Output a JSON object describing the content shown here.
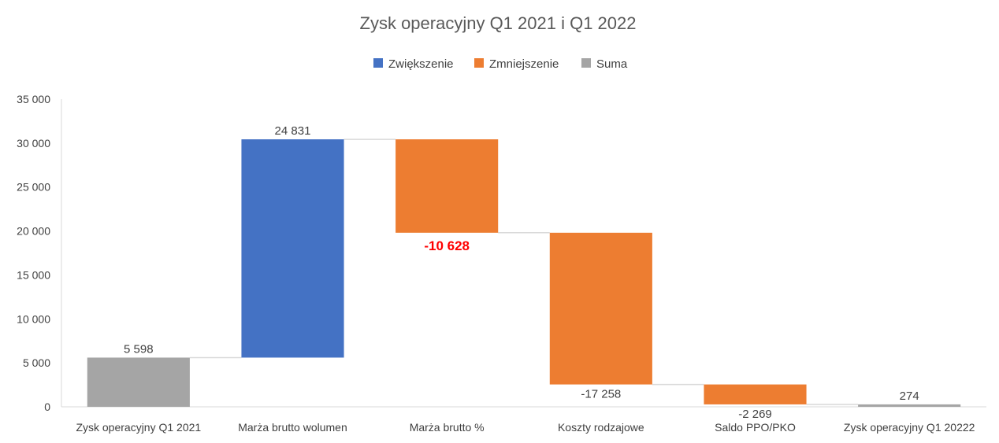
{
  "chart_data": {
    "type": "waterfall",
    "title": "Zysk operacyjny Q1 2021 i Q1 2022",
    "legend": [
      {
        "name": "Zwiększenie",
        "color": "#4472c4"
      },
      {
        "name": "Zmniejszenie",
        "color": "#ed7d31"
      },
      {
        "name": "Suma",
        "color": "#a5a5a5"
      }
    ],
    "legend_position": "top",
    "categories": [
      "Zysk operacyjny Q1 2021",
      "Marża brutto wolumen",
      "Marża brutto %",
      "Koszty rodzajowe",
      "Saldo PPO/PKO",
      "Zysk operacyjny Q1 20222"
    ],
    "values": [
      5598,
      24831,
      -10628,
      -17258,
      -2269,
      274
    ],
    "kinds": [
      "total",
      "increase",
      "decrease",
      "decrease",
      "decrease",
      "total"
    ],
    "labels": [
      "5 598",
      "24 831",
      "-10 628",
      "-17 258",
      "-2 269",
      "274"
    ],
    "highlight_label_index": 2,
    "highlight_color": "#ff0000",
    "ylim": [
      0,
      35000
    ],
    "yticks": [
      0,
      5000,
      10000,
      15000,
      20000,
      25000,
      30000,
      35000
    ],
    "ytick_labels": [
      "0",
      "5 000",
      "10 000",
      "15 000",
      "20 000",
      "25 000",
      "30 000",
      "35 000"
    ],
    "grid": false,
    "connectors": true
  }
}
